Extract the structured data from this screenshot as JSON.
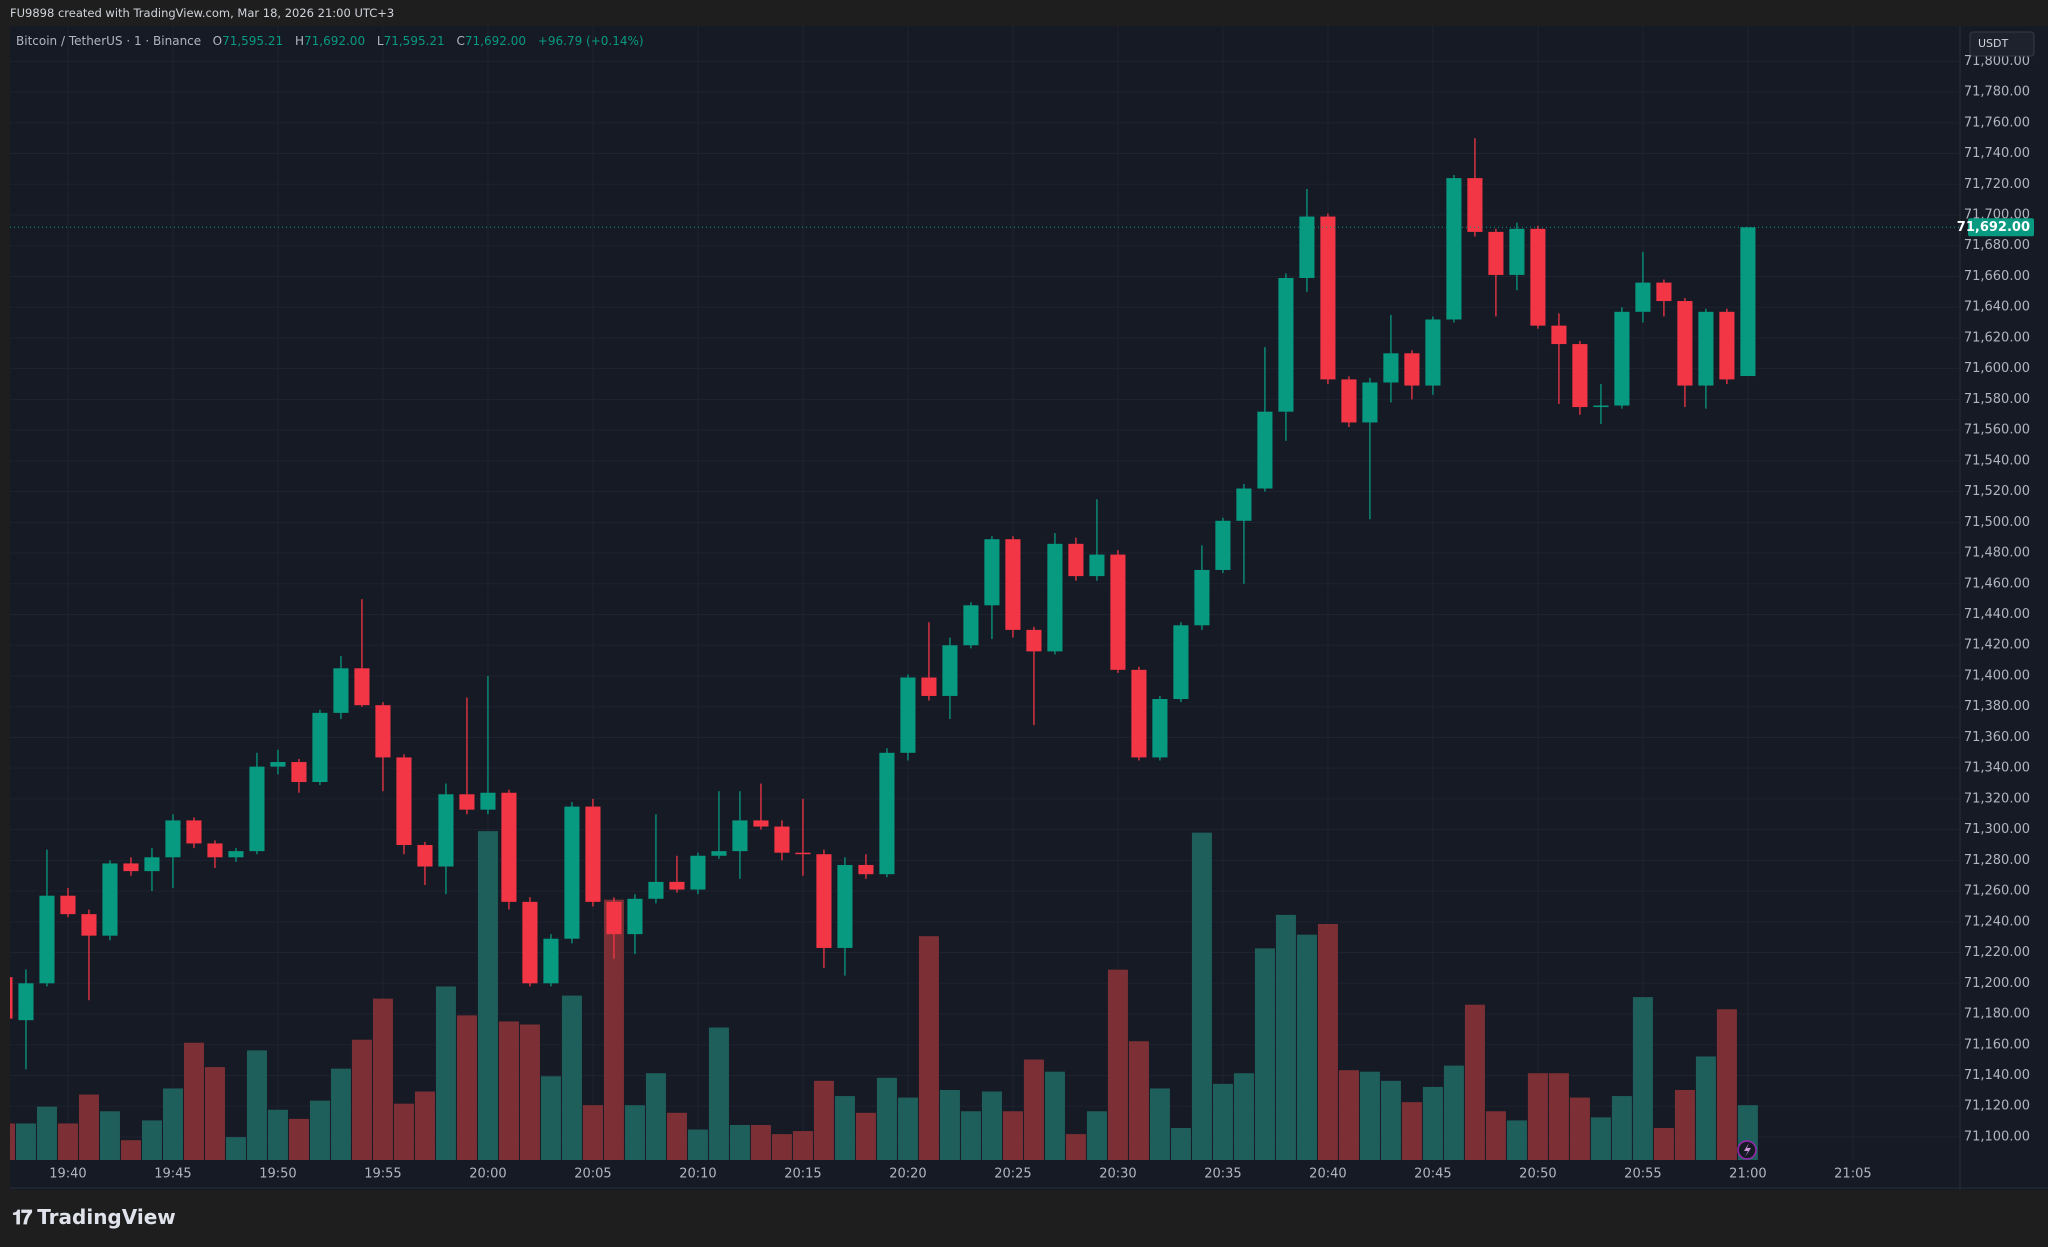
{
  "header": {
    "caption": "FU9898 created with TradingView.com, Mar 18, 2026 21:00 UTC+3"
  },
  "legend": {
    "symbol": "Bitcoin / TetherUS · 1 · Binance",
    "open_label": "O",
    "open": "71,595.21",
    "high_label": "H",
    "high": "71,692.00",
    "low_label": "L",
    "low": "71,595.21",
    "close_label": "C",
    "close": "71,692.00",
    "change": "+96.79 (+0.14%)"
  },
  "scale": {
    "currency": "USDT",
    "last_price": {
      "value": 71692,
      "label": "71,692.00"
    }
  },
  "footer": {
    "logo": "TradingView"
  },
  "chart_data": {
    "type": "candlestick",
    "up_color": "#089981",
    "down_color": "#f23645",
    "volume_up_color": "#1f5f5b",
    "volume_down_color": "#7c3035",
    "grid": true,
    "x": [
      1177,
      1178,
      1179,
      1180,
      1181,
      1182,
      1183,
      1184,
      1185,
      1186,
      1187,
      1188,
      1189,
      1190,
      1191,
      1192,
      1193,
      1194,
      1195,
      1196,
      1197,
      1198,
      1199,
      1200,
      1201,
      1202,
      1203,
      1204,
      1205,
      1206,
      1207,
      1208,
      1209,
      1210,
      1211,
      1212,
      1213,
      1214,
      1215,
      1216,
      1217,
      1218,
      1219,
      1220,
      1221,
      1222,
      1223,
      1224,
      1225,
      1226,
      1227,
      1228,
      1229,
      1230,
      1231,
      1232,
      1233,
      1234,
      1235,
      1236,
      1237,
      1238,
      1239,
      1240,
      1241,
      1242,
      1243,
      1244,
      1245,
      1246,
      1247,
      1248,
      1249,
      1250,
      1251,
      1252,
      1253,
      1254,
      1255,
      1256,
      1257,
      1258,
      1259,
      1260
    ],
    "open": [
      71204,
      71176,
      71200,
      71257,
      71245,
      71231,
      71278,
      71273,
      71282,
      71306,
      71291,
      71282,
      71286,
      71341,
      71344,
      71331,
      71376,
      71405,
      71381,
      71347,
      71290,
      71276,
      71323,
      71313,
      71324,
      71253,
      71200,
      71229,
      71315,
      71253,
      71232,
      71255,
      71266,
      71261,
      71283,
      71286,
      71306,
      71302,
      71285,
      71284,
      71223,
      71277,
      71271,
      71350,
      71399,
      71387,
      71420,
      71446,
      71489,
      71430,
      71416,
      71486,
      71465,
      71479,
      71404,
      71347,
      71385,
      71433,
      71469,
      71501,
      71522,
      71572,
      71659,
      71699,
      71593,
      71565,
      71591,
      71610,
      71589,
      71632,
      71724,
      71689,
      71661,
      71691,
      71628,
      71616,
      71575,
      71576,
      71637,
      71656,
      71644,
      71589,
      71637,
      71595.21
    ],
    "high": [
      71210,
      71209,
      71287,
      71262,
      71248,
      71280,
      71282,
      71288,
      71310,
      71308,
      71293,
      71288,
      71350,
      71352,
      71346,
      71378,
      71413,
      71450,
      71383,
      71349,
      71292,
      71330,
      71386,
      71400,
      71326,
      71256,
      71232,
      71318,
      71320,
      71256,
      71258,
      71310,
      71283,
      71285,
      71325,
      71325,
      71330,
      71306,
      71320,
      71287,
      71282,
      71284,
      71353,
      71401,
      71435,
      71425,
      71448,
      71491,
      71491,
      71432,
      71493,
      71490,
      71515,
      71482,
      71406,
      71387,
      71435,
      71485,
      71503,
      71525,
      71614,
      71662,
      71717,
      71701,
      71595,
      71594,
      71635,
      71612,
      71634,
      71726,
      71750,
      71691,
      71695,
      71693,
      71636,
      71618,
      71590,
      71640,
      71676,
      71658,
      71646,
      71639,
      71639,
      71692
    ],
    "low": [
      71170,
      71144,
      71198,
      71243,
      71189,
      71228,
      71270,
      71260,
      71262,
      71288,
      71275,
      71279,
      71284,
      71336,
      71324,
      71329,
      71372,
      71380,
      71325,
      71284,
      71264,
      71258,
      71310,
      71310,
      71248,
      71198,
      71198,
      71226,
      71250,
      71216,
      71219,
      71252,
      71259,
      71258,
      71281,
      71268,
      71300,
      71280,
      71270,
      71210,
      71205,
      71268,
      71269,
      71345,
      71384,
      71372,
      71418,
      71424,
      71425,
      71368,
      71414,
      71462,
      71462,
      71402,
      71345,
      71345,
      71383,
      71430,
      71467,
      71460,
      71520,
      71553,
      71650,
      71590,
      71562,
      71502,
      71578,
      71580,
      71583,
      71630,
      71686,
      71634,
      71651,
      71626,
      71577,
      71570,
      71564,
      71574,
      71630,
      71634,
      71575,
      71574,
      71590,
      71595.21
    ],
    "close": [
      71177,
      71200,
      71257,
      71245,
      71231,
      71278,
      71273,
      71282,
      71306,
      71291,
      71282,
      71286,
      71341,
      71344,
      71331,
      71376,
      71405,
      71381,
      71347,
      71290,
      71276,
      71323,
      71313,
      71324,
      71253,
      71200,
      71229,
      71315,
      71253,
      71232,
      71255,
      71266,
      71261,
      71283,
      71286,
      71306,
      71302,
      71285,
      71284,
      71223,
      71277,
      71271,
      71350,
      71399,
      71387,
      71420,
      71446,
      71489,
      71430,
      71416,
      71486,
      71465,
      71479,
      71404,
      71347,
      71385,
      71433,
      71469,
      71501,
      71522,
      71572,
      71659,
      71699,
      71593,
      71565,
      71591,
      71610,
      71589,
      71632,
      71724,
      71689,
      71661,
      71691,
      71628,
      71616,
      71575,
      71576,
      71637,
      71656,
      71644,
      71589,
      71637,
      71593,
      71692
    ],
    "volume": [
      24,
      24,
      35,
      24,
      43,
      32,
      13,
      26,
      47,
      77,
      61,
      15,
      72,
      33,
      27,
      39,
      60,
      79,
      106,
      37,
      45,
      114,
      95,
      216,
      91,
      89,
      55,
      108,
      36,
      171,
      36,
      57,
      31,
      20,
      87,
      23,
      23,
      17,
      19,
      52,
      42,
      31,
      54,
      41,
      147,
      46,
      32,
      45,
      32,
      66,
      58,
      17,
      32,
      125,
      78,
      47,
      21,
      215,
      50,
      57,
      139,
      161,
      148,
      155,
      59,
      58,
      52,
      38,
      48,
      62,
      102,
      32,
      26,
      57,
      57,
      41,
      28,
      42,
      107,
      21,
      46,
      68,
      99,
      36
    ],
    "xlim": [
      1177.24,
      1270.1
    ],
    "xticks": [
      {
        "value": 1180,
        "label": "19:40"
      },
      {
        "value": 1185,
        "label": "19:45"
      },
      {
        "value": 1190,
        "label": "19:50"
      },
      {
        "value": 1195,
        "label": "19:55"
      },
      {
        "value": 1200,
        "label": "20:00"
      },
      {
        "value": 1205,
        "label": "20:05"
      },
      {
        "value": 1210,
        "label": "20:10"
      },
      {
        "value": 1215,
        "label": "20:15"
      },
      {
        "value": 1220,
        "label": "20:20"
      },
      {
        "value": 1225,
        "label": "20:25"
      },
      {
        "value": 1230,
        "label": "20:30"
      },
      {
        "value": 1235,
        "label": "20:35"
      },
      {
        "value": 1240,
        "label": "20:40"
      },
      {
        "value": 1245,
        "label": "20:45"
      },
      {
        "value": 1250,
        "label": "20:50"
      },
      {
        "value": 1255,
        "label": "20:55"
      },
      {
        "value": 1260,
        "label": "21:00"
      },
      {
        "value": 1265,
        "label": "21:05"
      }
    ],
    "ylim": [
      71085,
      71823
    ],
    "yticks": [
      {
        "value": 71100,
        "label": "71,100.00"
      },
      {
        "value": 71120,
        "label": "71,120.00"
      },
      {
        "value": 71140,
        "label": "71,140.00"
      },
      {
        "value": 71160,
        "label": "71,160.00"
      },
      {
        "value": 71180,
        "label": "71,180.00"
      },
      {
        "value": 71200,
        "label": "71,200.00"
      },
      {
        "value": 71220,
        "label": "71,220.00"
      },
      {
        "value": 71240,
        "label": "71,240.00"
      },
      {
        "value": 71260,
        "label": "71,260.00"
      },
      {
        "value": 71280,
        "label": "71,280.00"
      },
      {
        "value": 71300,
        "label": "71,300.00"
      },
      {
        "value": 71320,
        "label": "71,320.00"
      },
      {
        "value": 71340,
        "label": "71,340.00"
      },
      {
        "value": 71360,
        "label": "71,360.00"
      },
      {
        "value": 71380,
        "label": "71,380.00"
      },
      {
        "value": 71400,
        "label": "71,400.00"
      },
      {
        "value": 71420,
        "label": "71,420.00"
      },
      {
        "value": 71440,
        "label": "71,440.00"
      },
      {
        "value": 71460,
        "label": "71,460.00"
      },
      {
        "value": 71480,
        "label": "71,480.00"
      },
      {
        "value": 71500,
        "label": "71,500.00"
      },
      {
        "value": 71520,
        "label": "71,520.00"
      },
      {
        "value": 71540,
        "label": "71,540.00"
      },
      {
        "value": 71560,
        "label": "71,560.00"
      },
      {
        "value": 71580,
        "label": "71,580.00"
      },
      {
        "value": 71600,
        "label": "71,600.00"
      },
      {
        "value": 71620,
        "label": "71,620.00"
      },
      {
        "value": 71640,
        "label": "71,640.00"
      },
      {
        "value": 71660,
        "label": "71,660.00"
      },
      {
        "value": 71680,
        "label": "71,680.00"
      },
      {
        "value": 71700,
        "label": "71,700.00"
      },
      {
        "value": 71720,
        "label": "71,720.00"
      },
      {
        "value": 71740,
        "label": "71,740.00"
      },
      {
        "value": 71760,
        "label": "71,760.00"
      },
      {
        "value": 71780,
        "label": "71,780.00"
      },
      {
        "value": 71800,
        "label": "71,800.00"
      }
    ]
  }
}
